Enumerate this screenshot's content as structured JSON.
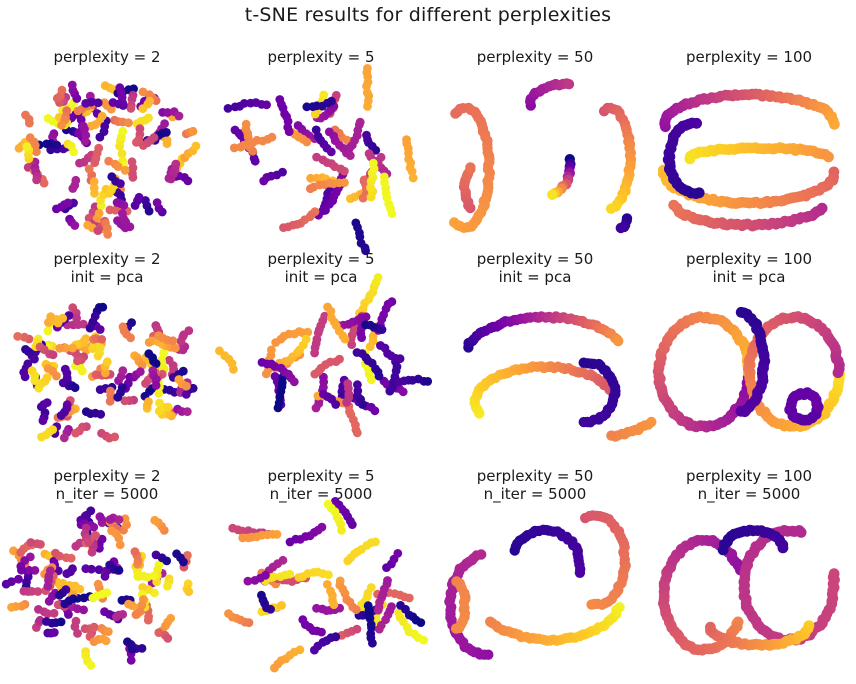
{
  "figure": {
    "title": "t-SNE results for different perplexities"
  },
  "colormap": {
    "name": "plasma",
    "stops": [
      "#0d0887",
      "#46039f",
      "#7201a8",
      "#9c179e",
      "#bd3786",
      "#d8576b",
      "#ed7953",
      "#fb9f3a",
      "#fdca26",
      "#f0f921"
    ]
  },
  "chart_data": [
    {
      "type": "scatter",
      "row": 0,
      "col": 0,
      "title_lines": [
        "perplexity = 2"
      ],
      "perplexity": 2,
      "axes": "off",
      "layout": "fragments"
    },
    {
      "type": "scatter",
      "row": 0,
      "col": 1,
      "title_lines": [
        "perplexity = 5"
      ],
      "perplexity": 5,
      "axes": "off",
      "layout": "fragments"
    },
    {
      "type": "scatter",
      "row": 0,
      "col": 2,
      "title_lines": [
        "perplexity = 50"
      ],
      "perplexity": 50,
      "axes": "off",
      "layout": "arcs"
    },
    {
      "type": "scatter",
      "row": 0,
      "col": 3,
      "title_lines": [
        "perplexity = 100"
      ],
      "perplexity": 100,
      "axes": "off",
      "layout": "loops"
    },
    {
      "type": "scatter",
      "row": 1,
      "col": 0,
      "title_lines": [
        "perplexity = 2",
        "init = pca"
      ],
      "perplexity": 2,
      "init": "pca",
      "axes": "off",
      "layout": "fragments"
    },
    {
      "type": "scatter",
      "row": 1,
      "col": 1,
      "title_lines": [
        "perplexity = 5",
        "init = pca"
      ],
      "perplexity": 5,
      "init": "pca",
      "axes": "off",
      "layout": "fragments"
    },
    {
      "type": "scatter",
      "row": 1,
      "col": 2,
      "title_lines": [
        "perplexity = 50",
        "init = pca"
      ],
      "perplexity": 50,
      "init": "pca",
      "axes": "off",
      "layout": "arcs"
    },
    {
      "type": "scatter",
      "row": 1,
      "col": 3,
      "title_lines": [
        "perplexity = 100",
        "init = pca"
      ],
      "perplexity": 100,
      "init": "pca",
      "axes": "off",
      "layout": "loops"
    },
    {
      "type": "scatter",
      "row": 2,
      "col": 0,
      "title_lines": [
        "perplexity = 2",
        "n_iter = 5000"
      ],
      "perplexity": 2,
      "n_iter": 5000,
      "axes": "off",
      "layout": "fragments"
    },
    {
      "type": "scatter",
      "row": 2,
      "col": 1,
      "title_lines": [
        "perplexity = 5",
        "n_iter = 5000"
      ],
      "perplexity": 5,
      "n_iter": 5000,
      "axes": "off",
      "layout": "fragments"
    },
    {
      "type": "scatter",
      "row": 2,
      "col": 2,
      "title_lines": [
        "perplexity = 50",
        "n_iter = 5000"
      ],
      "perplexity": 50,
      "n_iter": 5000,
      "axes": "off",
      "layout": "arcs"
    },
    {
      "type": "scatter",
      "row": 2,
      "col": 3,
      "title_lines": [
        "perplexity = 100",
        "n_iter = 5000"
      ],
      "perplexity": 100,
      "n_iter": 5000,
      "axes": "off",
      "layout": "loops"
    }
  ]
}
